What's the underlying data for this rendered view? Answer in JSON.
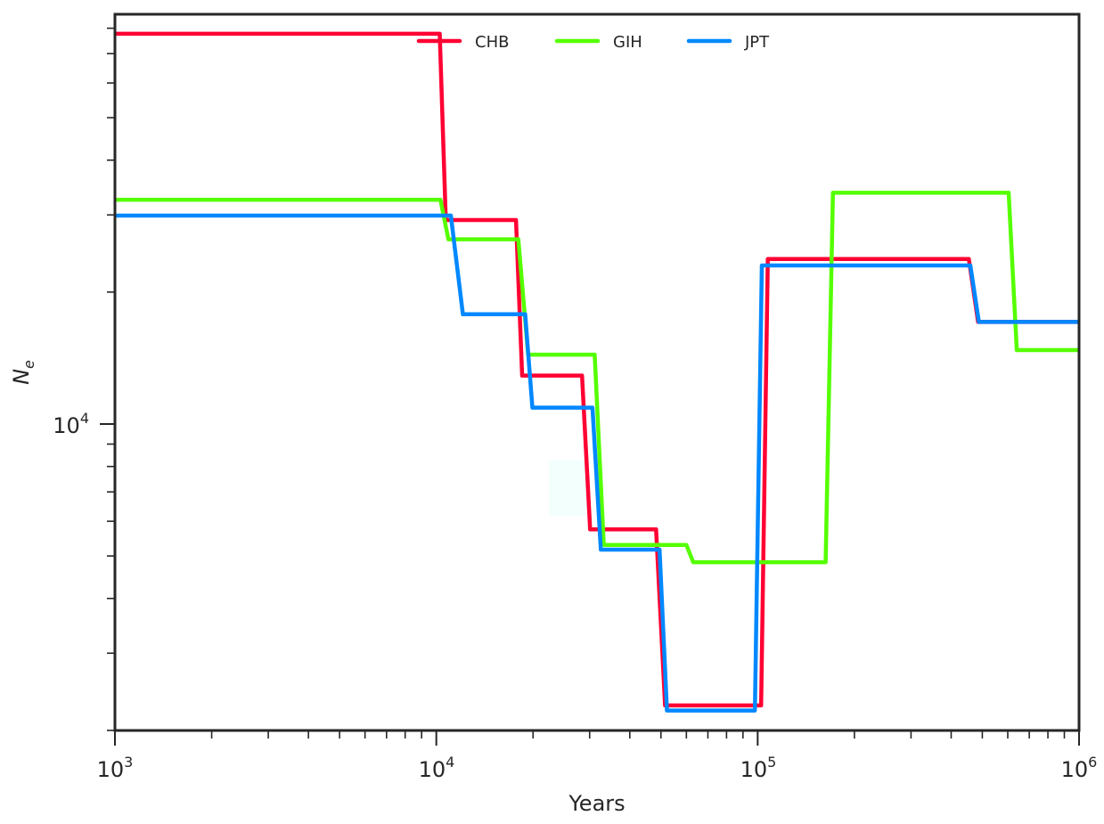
{
  "chart_data": {
    "type": "line",
    "title": "",
    "xlabel": "Years",
    "ylabel": "N_e",
    "ylabel_main": "N",
    "ylabel_sub": "e",
    "xscale": "log",
    "yscale": "log",
    "xlim": [
      1000,
      1000000
    ],
    "ylim": [
      2000,
      86000
    ],
    "grid": false,
    "legend_position": "upper center",
    "x_ticks": [
      {
        "base": "10",
        "exp": "3",
        "value": 1000
      },
      {
        "base": "10",
        "exp": "4",
        "value": 10000
      },
      {
        "base": "10",
        "exp": "5",
        "value": 100000
      },
      {
        "base": "10",
        "exp": "6",
        "value": 1000000
      }
    ],
    "y_ticks": [
      {
        "base": "10",
        "exp": "4",
        "value": 10000
      }
    ],
    "y_minor_ticks": [
      2000,
      3000,
      4000,
      5000,
      6000,
      7000,
      8000,
      9000,
      20000,
      30000,
      40000,
      50000,
      60000,
      70000,
      80000
    ],
    "series": [
      {
        "name": "CHB",
        "color": "#ff0033",
        "points": [
          [
            1000,
            77700
          ],
          [
            10250,
            77700
          ],
          [
            10700,
            29200
          ],
          [
            17700,
            29200
          ],
          [
            18500,
            12900
          ],
          [
            28400,
            12900
          ],
          [
            30100,
            5750
          ],
          [
            48300,
            5750
          ],
          [
            51500,
            2280
          ],
          [
            102500,
            2280
          ],
          [
            107500,
            23800
          ],
          [
            454000,
            23800
          ],
          [
            485000,
            17100
          ],
          [
            1000000,
            17100
          ]
        ]
      },
      {
        "name": "GIH",
        "color": "#55ff00",
        "points": [
          [
            1000,
            32500
          ],
          [
            10300,
            32500
          ],
          [
            10900,
            26400
          ],
          [
            18000,
            26400
          ],
          [
            19300,
            14400
          ],
          [
            31100,
            14400
          ],
          [
            33200,
            5300
          ],
          [
            60000,
            5300
          ],
          [
            63000,
            4840
          ],
          [
            162700,
            4840
          ],
          [
            171500,
            33700
          ],
          [
            604000,
            33700
          ],
          [
            640000,
            14750
          ],
          [
            1000000,
            14750
          ]
        ]
      },
      {
        "name": "JPT",
        "color": "#0088ff",
        "points": [
          [
            1000,
            29900
          ],
          [
            11100,
            29900
          ],
          [
            12100,
            17800
          ],
          [
            18900,
            17800
          ],
          [
            19900,
            10900
          ],
          [
            30600,
            10900
          ],
          [
            32500,
            5170
          ],
          [
            49500,
            5170
          ],
          [
            52200,
            2220
          ],
          [
            98000,
            2220
          ],
          [
            103000,
            23000
          ],
          [
            459000,
            23000
          ],
          [
            488000,
            17100
          ],
          [
            1000000,
            17100
          ]
        ]
      }
    ]
  },
  "legend": {
    "items": [
      {
        "label": "CHB",
        "color": "#ff0033"
      },
      {
        "label": "GIH",
        "color": "#55ff00"
      },
      {
        "label": "JPT",
        "color": "#0088ff"
      }
    ]
  },
  "colors": {
    "axis": "#262626",
    "background": "#ffffff"
  }
}
